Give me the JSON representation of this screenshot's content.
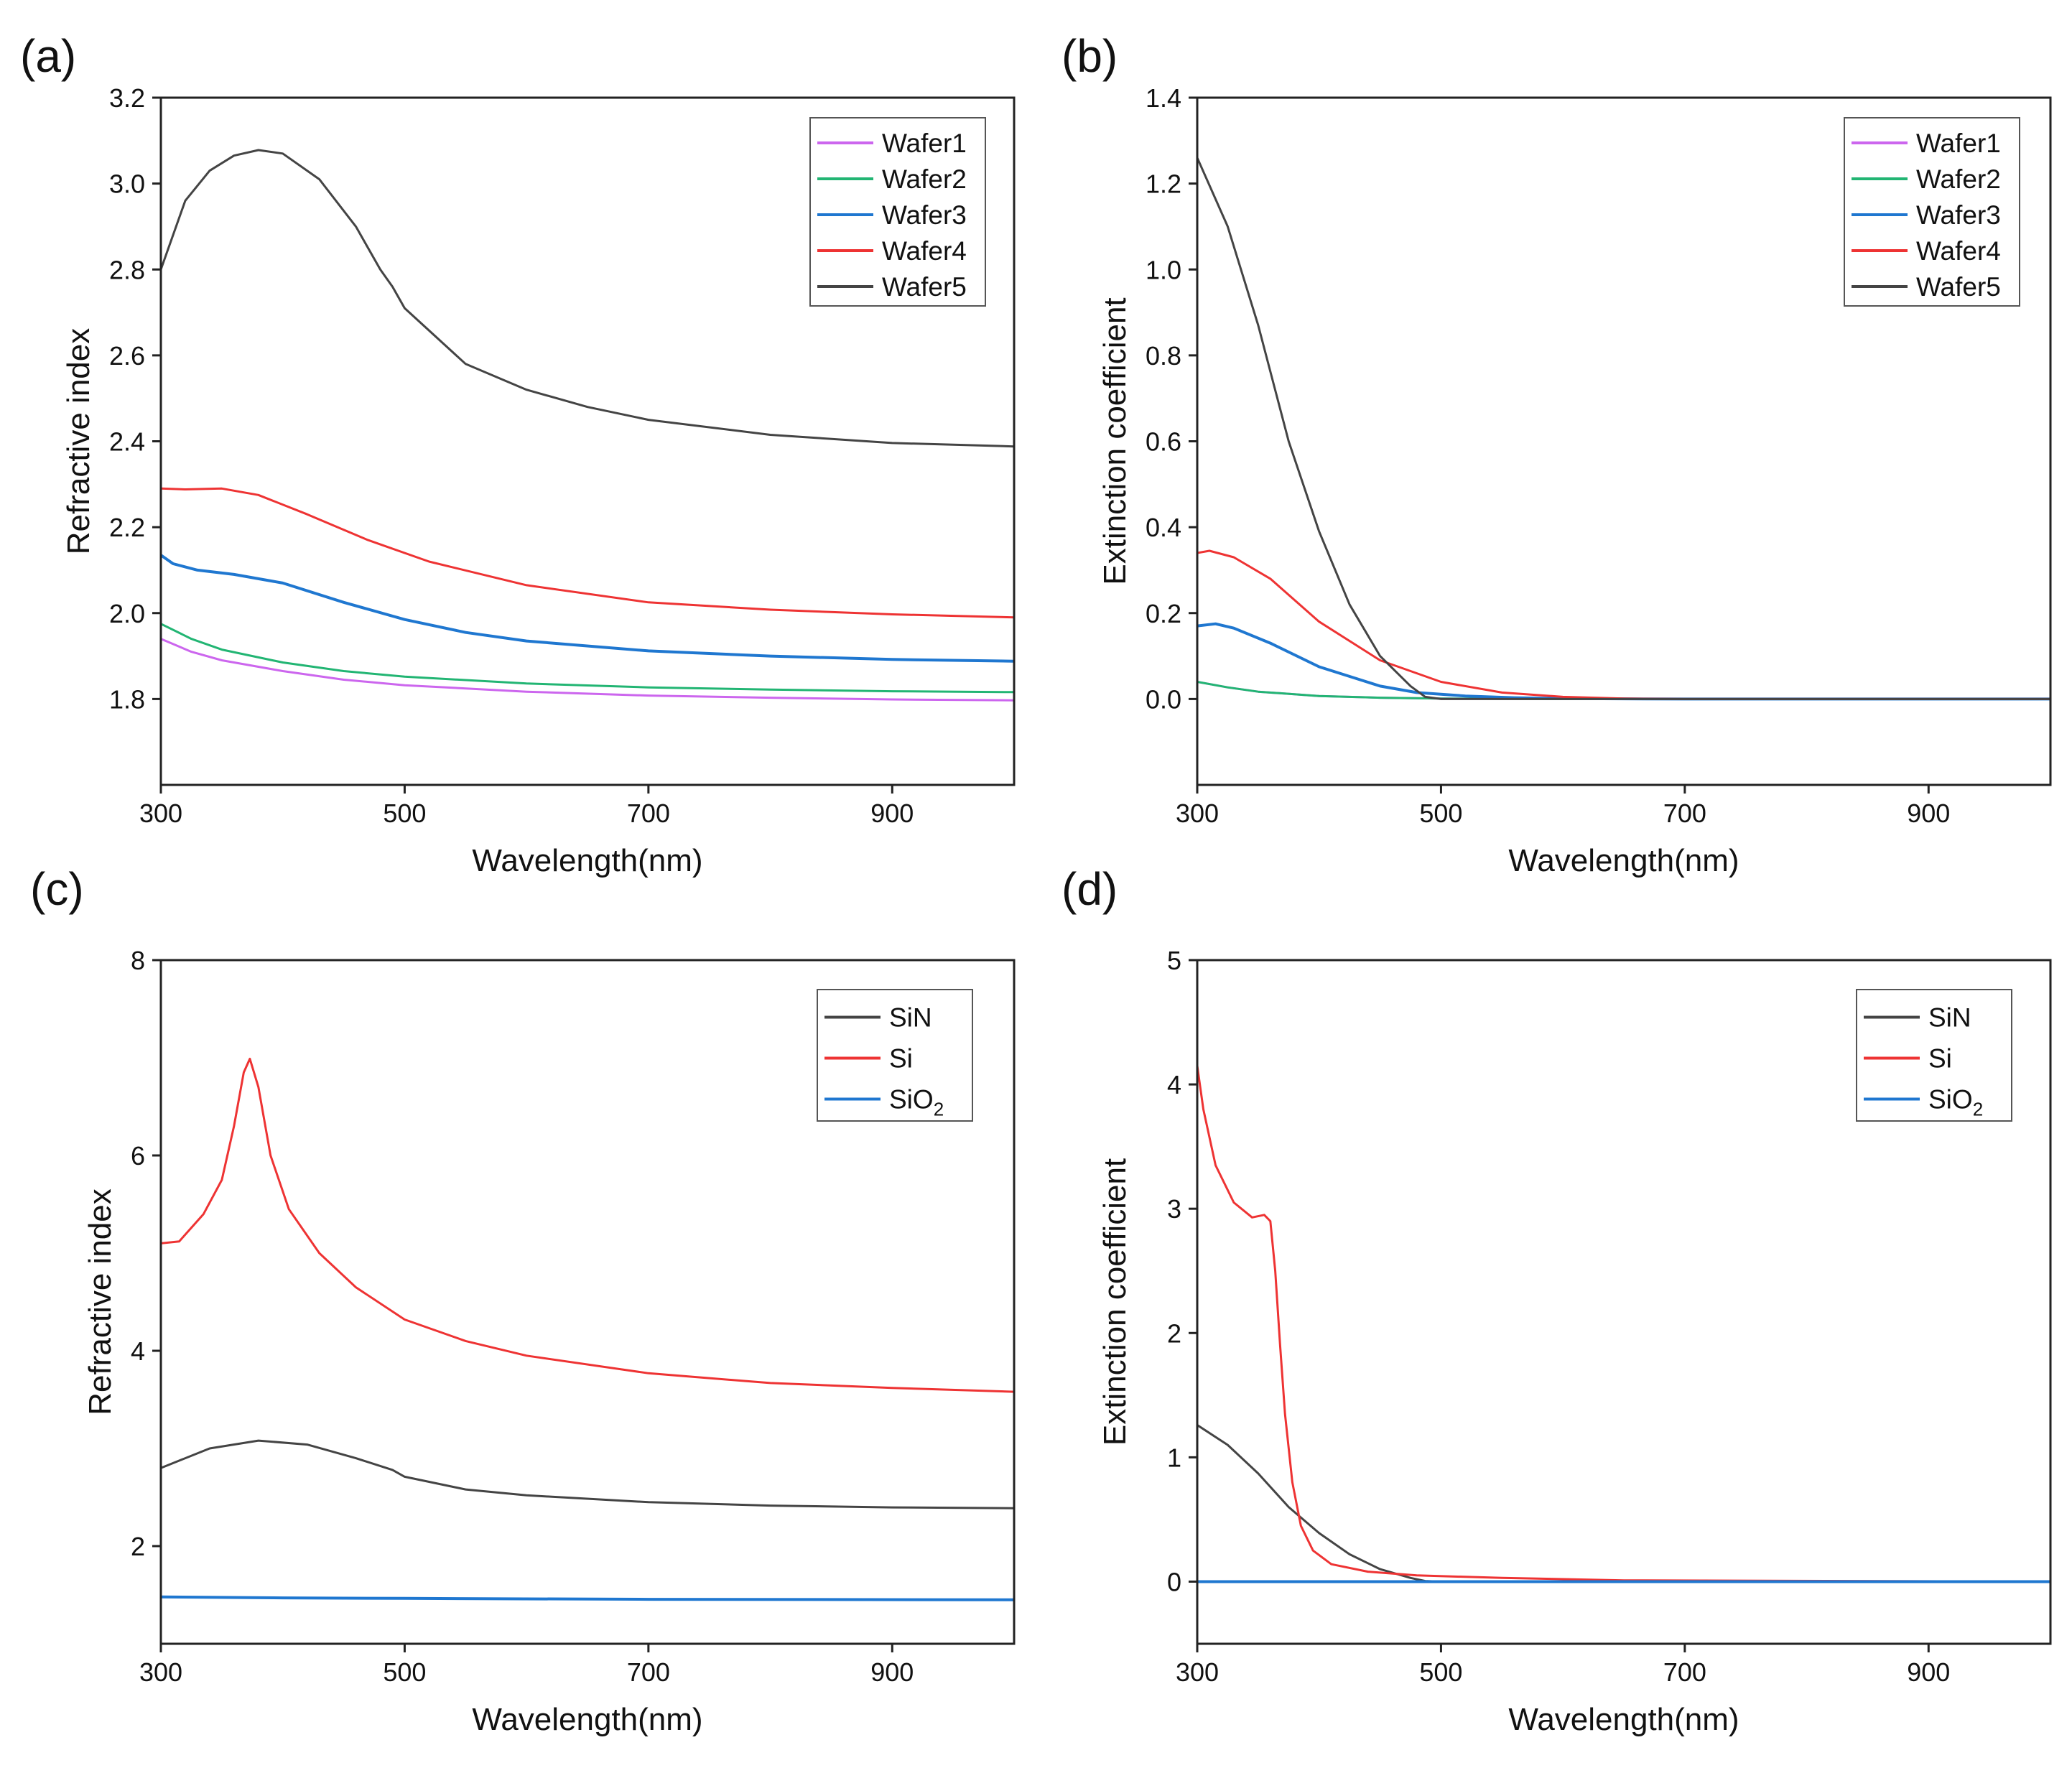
{
  "chart_data": [
    {
      "panel_label": "(a)",
      "type": "line",
      "xlabel": "Wavelength(nm)",
      "ylabel": "Refractive index",
      "xlim": [
        300,
        1000
      ],
      "ylim": [
        1.6,
        3.2
      ],
      "xticks": [
        300,
        500,
        700,
        900
      ],
      "xtick_labels": [
        "300",
        "500",
        "700",
        "900"
      ],
      "yticks": [
        1.8,
        2.0,
        2.2,
        2.4,
        2.6,
        2.8,
        3.0,
        3.2
      ],
      "ytick_labels": [
        "1.8",
        "2.0",
        "2.2",
        "2.4",
        "2.6",
        "2.8",
        "3.0",
        "3.2"
      ],
      "legend_position": "top-right",
      "series": [
        {
          "name": "Wafer1",
          "color": "#cc66ee",
          "x": [
            300,
            325,
            350,
            400,
            450,
            500,
            600,
            700,
            800,
            900,
            1000
          ],
          "y": [
            1.94,
            1.91,
            1.89,
            1.865,
            1.845,
            1.832,
            1.817,
            1.808,
            1.803,
            1.799,
            1.797
          ]
        },
        {
          "name": "Wafer2",
          "color": "#22b573",
          "x": [
            300,
            325,
            350,
            400,
            450,
            500,
            600,
            700,
            800,
            900,
            1000
          ],
          "y": [
            1.975,
            1.94,
            1.915,
            1.885,
            1.865,
            1.852,
            1.836,
            1.827,
            1.822,
            1.818,
            1.816
          ]
        },
        {
          "name": "Wafer3",
          "color": "#1f77d0",
          "x": [
            300,
            310,
            330,
            360,
            400,
            450,
            500,
            550,
            600,
            700,
            800,
            900,
            1000
          ],
          "y": [
            2.135,
            2.115,
            2.1,
            2.09,
            2.07,
            2.025,
            1.985,
            1.955,
            1.935,
            1.912,
            1.9,
            1.892,
            1.888
          ]
        },
        {
          "name": "Wafer4",
          "color": "#ee3333",
          "x": [
            300,
            320,
            350,
            380,
            420,
            470,
            520,
            600,
            700,
            800,
            900,
            1000
          ],
          "y": [
            2.29,
            2.288,
            2.29,
            2.275,
            2.23,
            2.17,
            2.12,
            2.065,
            2.025,
            2.008,
            1.997,
            1.99
          ]
        },
        {
          "name": "Wafer5",
          "color": "#444444",
          "x": [
            300,
            320,
            340,
            360,
            380,
            400,
            430,
            460,
            480,
            490,
            500,
            550,
            600,
            650,
            700,
            800,
            900,
            1000
          ],
          "y": [
            2.8,
            2.96,
            3.03,
            3.065,
            3.078,
            3.07,
            3.01,
            2.9,
            2.8,
            2.76,
            2.71,
            2.58,
            2.52,
            2.48,
            2.45,
            2.415,
            2.396,
            2.388
          ]
        }
      ]
    },
    {
      "panel_label": "(b)",
      "type": "line",
      "xlabel": "Wavelength(nm)",
      "ylabel": "Extinction coefficient",
      "xlim": [
        300,
        1000
      ],
      "ylim": [
        -0.2,
        1.4
      ],
      "xticks": [
        300,
        500,
        700,
        900
      ],
      "xtick_labels": [
        "300",
        "500",
        "700",
        "900"
      ],
      "yticks": [
        0.0,
        0.2,
        0.4,
        0.6,
        0.8,
        1.0,
        1.2,
        1.4
      ],
      "ytick_labels": [
        "0.0",
        "0.2",
        "0.4",
        "0.6",
        "0.8",
        "1.0",
        "1.2",
        "1.4"
      ],
      "legend_position": "top-right",
      "series": [
        {
          "name": "Wafer1",
          "color": "#cc66ee",
          "x": [
            300,
            325,
            350,
            400,
            450,
            500,
            600,
            700,
            1000
          ],
          "y": [
            0.04,
            0.027,
            0.017,
            0.007,
            0.003,
            0.001,
            0,
            0,
            0
          ]
        },
        {
          "name": "Wafer2",
          "color": "#22b573",
          "x": [
            300,
            325,
            350,
            400,
            450,
            500,
            600,
            700,
            1000
          ],
          "y": [
            0.04,
            0.027,
            0.017,
            0.007,
            0.003,
            0.001,
            0,
            0,
            0
          ]
        },
        {
          "name": "Wafer3",
          "color": "#1f77d0",
          "x": [
            300,
            315,
            330,
            360,
            400,
            450,
            480,
            520,
            560,
            600,
            700,
            1000
          ],
          "y": [
            0.17,
            0.175,
            0.165,
            0.13,
            0.075,
            0.03,
            0.015,
            0.007,
            0.003,
            0.001,
            0,
            0
          ]
        },
        {
          "name": "Wafer4",
          "color": "#ee3333",
          "x": [
            300,
            310,
            330,
            360,
            400,
            450,
            500,
            550,
            600,
            650,
            700,
            1000
          ],
          "y": [
            0.34,
            0.345,
            0.33,
            0.28,
            0.18,
            0.09,
            0.04,
            0.015,
            0.005,
            0.001,
            0,
            0
          ]
        },
        {
          "name": "Wafer5",
          "color": "#444444",
          "x": [
            300,
            325,
            350,
            375,
            400,
            425,
            450,
            475,
            487,
            500,
            600,
            1000
          ],
          "y": [
            1.26,
            1.1,
            0.87,
            0.6,
            0.39,
            0.22,
            0.1,
            0.03,
            0.005,
            0,
            0,
            0
          ]
        }
      ]
    },
    {
      "panel_label": "(c)",
      "type": "line",
      "xlabel": "Wavelength(nm)",
      "ylabel": "Refractive index",
      "xlim": [
        300,
        1000
      ],
      "ylim": [
        1,
        8
      ],
      "xticks": [
        300,
        500,
        700,
        900
      ],
      "xtick_labels": [
        "300",
        "500",
        "700",
        "900"
      ],
      "yticks": [
        2,
        4,
        6,
        8
      ],
      "ytick_labels": [
        "2",
        "4",
        "6",
        "8"
      ],
      "legend_position": "top-right",
      "series": [
        {
          "name": "SiN",
          "legend_label": "SiN",
          "color": "#444444",
          "x": [
            300,
            340,
            380,
            420,
            460,
            490,
            500,
            550,
            600,
            700,
            800,
            900,
            1000
          ],
          "y": [
            2.8,
            3.0,
            3.08,
            3.04,
            2.9,
            2.78,
            2.71,
            2.58,
            2.52,
            2.45,
            2.415,
            2.396,
            2.388
          ]
        },
        {
          "name": "Si",
          "legend_label": "Si",
          "color": "#ee3333",
          "x": [
            300,
            315,
            335,
            350,
            360,
            368,
            373,
            380,
            390,
            405,
            430,
            460,
            500,
            550,
            600,
            700,
            800,
            900,
            1000
          ],
          "y": [
            5.1,
            5.12,
            5.4,
            5.75,
            6.3,
            6.85,
            6.99,
            6.7,
            6.0,
            5.45,
            5.0,
            4.65,
            4.32,
            4.1,
            3.95,
            3.77,
            3.67,
            3.62,
            3.58
          ]
        },
        {
          "name": "SiO2",
          "legend_label": "SiO",
          "legend_sub": "2",
          "color": "#1f77d0",
          "x": [
            300,
            400,
            500,
            700,
            1000
          ],
          "y": [
            1.48,
            1.47,
            1.465,
            1.455,
            1.45
          ]
        }
      ]
    },
    {
      "panel_label": "(d)",
      "type": "line",
      "xlabel": "Wavelength(nm)",
      "ylabel": "Extinction coefficient",
      "xlim": [
        300,
        1000
      ],
      "ylim": [
        -0.5,
        5
      ],
      "xticks": [
        300,
        500,
        700,
        900
      ],
      "xtick_labels": [
        "300",
        "500",
        "700",
        "900"
      ],
      "yticks": [
        0,
        1,
        2,
        3,
        4,
        5
      ],
      "ytick_labels": [
        "0",
        "1",
        "2",
        "3",
        "4",
        "5"
      ],
      "legend_position": "top-right",
      "series": [
        {
          "name": "SiN",
          "legend_label": "SiN",
          "color": "#444444",
          "x": [
            300,
            325,
            350,
            375,
            400,
            425,
            450,
            475,
            487,
            500,
            1000
          ],
          "y": [
            1.26,
            1.1,
            0.87,
            0.6,
            0.39,
            0.22,
            0.1,
            0.03,
            0.005,
            0,
            0
          ]
        },
        {
          "name": "Si",
          "legend_label": "Si",
          "color": "#ee3333",
          "x": [
            300,
            305,
            315,
            330,
            345,
            355,
            360,
            364,
            368,
            372,
            378,
            385,
            395,
            410,
            440,
            480,
            550,
            650,
            1000
          ],
          "y": [
            4.15,
            3.8,
            3.35,
            3.05,
            2.93,
            2.95,
            2.9,
            2.5,
            1.9,
            1.35,
            0.8,
            0.45,
            0.25,
            0.14,
            0.08,
            0.05,
            0.03,
            0.01,
            0.0
          ]
        },
        {
          "name": "SiO2",
          "legend_label": "SiO",
          "legend_sub": "2",
          "color": "#1f77d0",
          "x": [
            300,
            1000
          ],
          "y": [
            0,
            0
          ]
        }
      ]
    }
  ]
}
